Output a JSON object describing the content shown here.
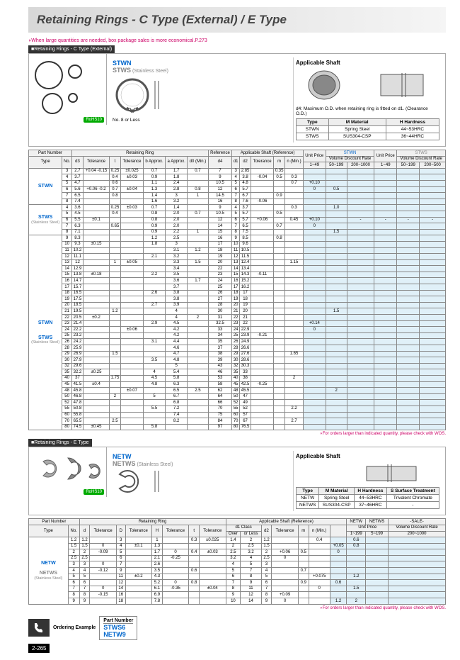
{
  "title": "Retaining Rings - C Type (External) / E Type",
  "topNote": "When large quantities are needed, box package sales is more economical.",
  "topNoteRef": "P.273",
  "section1": {
    "header": "Retaining Rings - C Type (External)",
    "codes": {
      "c1": "STWN",
      "c2": "STWS",
      "c2sub": "(Stainless Steel)"
    },
    "diagNote": "No. 8 or Less",
    "rohs": "RoHS10",
    "shaftTitle": "Applicable Shaft",
    "shaftNote": "d4: Maximum O.D. when retaining ring is fitted on d1. (Clearance O.D.)",
    "matTable": {
      "headers": [
        "Type",
        "M Material",
        "H Hardness"
      ],
      "rows": [
        [
          "STWN",
          "Spring Steel",
          "44~53HRC"
        ],
        [
          "STWS",
          "SUS304-CSP",
          "36~44HRC"
        ]
      ]
    }
  },
  "table1": {
    "groupHeaders": [
      "Part Number",
      "Retaining Ring",
      "Reference",
      "Applicable Shaft (Reference)",
      "",
      "STWN",
      "",
      "STWS"
    ],
    "priceHeaders": [
      "Unit Price",
      "Volume Discount Rate",
      "Unit Price",
      "Volume Discount Rate"
    ],
    "subHeaders": [
      "Type",
      "No.",
      "d3",
      "Tolerance",
      "t",
      "Tolerance",
      "b Approx.",
      "a Approx.",
      "d0 (Min.)",
      "d4",
      "d1",
      "d2",
      "Tolerance",
      "m",
      "n (Min.)",
      "1~49",
      "50~199",
      "200~1000",
      "1~49",
      "50~199",
      "200~500"
    ],
    "types": [
      {
        "name": "STWN",
        "sub": ""
      },
      {
        "name": "STWS",
        "sub": "(Stainless Steel)"
      },
      {
        "name": "STWN",
        "sub": ""
      },
      {
        "name": "STWS",
        "sub": "(Stainless Steel)"
      }
    ],
    "rows": [
      [
        "3",
        "2.7",
        "+0.04 -0.15",
        "0.25",
        "±0.025",
        "0.7",
        "1.7",
        "0.7",
        "7",
        "3",
        "2.85",
        "",
        "0.35",
        "",
        "",
        "",
        "",
        "",
        "",
        ""
      ],
      [
        "4",
        "3.7",
        "",
        "0.4",
        "±0.03",
        "0.9",
        "1.8",
        "",
        "9",
        "4",
        "3.8",
        "-0.04",
        "0.5",
        "0.3",
        "",
        "",
        "",
        "",
        "",
        ""
      ],
      [
        "5",
        "4.7",
        "",
        "0.6",
        "",
        "1.1",
        "2.4",
        "",
        "10.5",
        "5",
        "4.8",
        "",
        "",
        "0.7",
        "+0.10",
        "",
        "",
        "",
        "",
        ""
      ],
      [
        "6",
        "5.6",
        "+0.06 -0.2",
        "0.7",
        "±0.04",
        "1.3",
        "2.8",
        "0.8",
        "12",
        "6",
        "5.7",
        "",
        "",
        "",
        "0",
        "0.5",
        "",
        "",
        "",
        ""
      ],
      [
        "7",
        "6.5",
        "",
        "0.8",
        "",
        "1.4",
        "3",
        "1",
        "14.5",
        "7",
        "6.7",
        "",
        "0.9",
        "",
        "",
        "",
        "",
        "",
        "",
        ""
      ],
      [
        "8",
        "7.4",
        "",
        "",
        "",
        "1.6",
        "3.2",
        "",
        "16",
        "8",
        "7.6",
        "-0.06",
        "",
        "",
        "",
        "",
        "",
        "",
        "",
        ""
      ],
      [
        "4",
        "3.6",
        "",
        "0.25",
        "±0.03",
        "0.7",
        "1.4",
        "",
        "9",
        "4",
        "3.7",
        "",
        "",
        "0.3",
        "",
        "1.0",
        "",
        "",
        "",
        ""
      ],
      [
        "5",
        "4.5",
        "",
        "0.4",
        "",
        "0.8",
        "2.0",
        "0.7",
        "10.5",
        "5",
        "5.7",
        "",
        "0.5",
        "",
        "",
        "",
        "",
        "",
        "",
        ""
      ],
      [
        "6",
        "5.5",
        "±0.1",
        "",
        "",
        "0.8",
        "2.0",
        "",
        "12",
        "6",
        "5.7",
        "+0.06",
        "",
        "0.45",
        "+0.10",
        "",
        "-",
        "-",
        "-",
        "-"
      ],
      [
        "7",
        "6.3",
        "",
        "0.65",
        "",
        "0.9",
        "2.0",
        "",
        "14",
        "7",
        "6.5",
        "",
        "0.7",
        "",
        "0",
        "",
        "",
        "",
        "",
        ""
      ],
      [
        "8",
        "7.1",
        "",
        "",
        "",
        "0.9",
        "2.2",
        "1",
        "15",
        "8",
        "7.5",
        "",
        "",
        "",
        "",
        "1.5",
        "",
        "",
        "",
        ""
      ],
      [
        "9",
        "8.3",
        "",
        "",
        "",
        "1.2",
        "2.5",
        "",
        "16",
        "9",
        "8.5",
        "",
        "0.8",
        "",
        "",
        "",
        "",
        "",
        "",
        ""
      ],
      [
        "10",
        "9.3",
        "±0.15",
        "",
        "",
        "1.8",
        "3",
        "",
        "17",
        "10",
        "9.6",
        "",
        "",
        "",
        "",
        "",
        "",
        "",
        "",
        ""
      ],
      [
        "11",
        "10.2",
        "",
        "",
        "",
        "",
        "3.1",
        "1.2",
        "18",
        "11",
        "10.5",
        "",
        "",
        "",
        "",
        "",
        "",
        "",
        "",
        ""
      ],
      [
        "12",
        "11.1",
        "",
        "",
        "",
        "2.1",
        "3.2",
        "",
        "19",
        "12",
        "11.5",
        "",
        "",
        "",
        "",
        "",
        "",
        "",
        "",
        ""
      ],
      [
        "13",
        "12",
        "",
        "1",
        "±0.05",
        "",
        "3.3",
        "1.5",
        "20",
        "13",
        "12.4",
        "",
        "",
        "1.15",
        "",
        "",
        "",
        "",
        "",
        ""
      ],
      [
        "14",
        "12.9",
        "",
        "",
        "",
        "",
        "3.4",
        "",
        "22",
        "14",
        "13.4",
        "",
        "",
        "",
        "",
        "",
        "",
        "",
        "",
        ""
      ],
      [
        "15",
        "13.8",
        "±0.18",
        "",
        "",
        "2.2",
        "3.5",
        "",
        "23",
        "15",
        "14.3",
        "-0.11",
        "",
        "",
        "",
        "",
        "",
        "",
        "",
        ""
      ],
      [
        "16",
        "14.7",
        "",
        "",
        "",
        "",
        "3.6",
        "1.7",
        "24",
        "16",
        "15.2",
        "",
        "",
        "",
        "",
        "",
        "",
        "",
        "",
        ""
      ],
      [
        "17",
        "15.7",
        "",
        "",
        "",
        "",
        "3.7",
        "",
        "25",
        "17",
        "16.2",
        "",
        "",
        "",
        "",
        "",
        "",
        "",
        "",
        ""
      ],
      [
        "18",
        "16.5",
        "",
        "",
        "",
        "2.6",
        "3.8",
        "",
        "26",
        "18",
        "17",
        "",
        "",
        "",
        "",
        "",
        "",
        "",
        "",
        ""
      ],
      [
        "19",
        "17.5",
        "",
        "",
        "",
        "",
        "3.8",
        "",
        "27",
        "19",
        "18",
        "",
        "",
        "",
        "",
        "",
        "",
        "",
        "",
        ""
      ],
      [
        "20",
        "18.5",
        "",
        "",
        "",
        "2.7",
        "3.9",
        "",
        "28",
        "20",
        "19",
        "",
        "",
        "",
        "",
        "",
        "",
        "",
        "",
        ""
      ],
      [
        "21",
        "19.5",
        "",
        "1.2",
        "",
        "",
        "4",
        "",
        "30",
        "21",
        "20",
        "",
        "",
        "",
        "",
        "1.5",
        "",
        "",
        "",
        ""
      ],
      [
        "22",
        "20.5",
        "±0.2",
        "",
        "",
        "",
        "4",
        "2",
        "31",
        "22",
        "21",
        "",
        "",
        "",
        "",
        "",
        "",
        "",
        "",
        ""
      ],
      [
        "23",
        "21.4",
        "",
        "",
        "",
        "2.9",
        "4.5",
        "",
        "32.5",
        "23",
        "22",
        "",
        "",
        "",
        "+0.14",
        "",
        "",
        "",
        "",
        ""
      ],
      [
        "24",
        "22.2",
        "",
        "",
        "±0.06",
        "",
        "4.2",
        "",
        "33",
        "24",
        "22.9",
        "",
        "",
        "",
        "0",
        "",
        "",
        "",
        "",
        ""
      ],
      [
        "25",
        "23.2",
        "",
        "",
        "",
        "",
        "4.2",
        "",
        "34",
        "25",
        "23.9",
        "-0.21",
        "",
        "",
        "",
        "",
        "",
        "",
        "",
        ""
      ],
      [
        "26",
        "24.2",
        "",
        "",
        "",
        "3.1",
        "4.4",
        "",
        "35",
        "26",
        "24.9",
        "",
        "",
        "",
        "",
        "",
        "",
        "",
        "",
        ""
      ],
      [
        "28",
        "25.9",
        "",
        "",
        "",
        "",
        "4.6",
        "",
        "37",
        "28",
        "26.6",
        "",
        "",
        "",
        "",
        "",
        "",
        "",
        "",
        ""
      ],
      [
        "29",
        "26.9",
        "",
        "1.5",
        "",
        "",
        "4.7",
        "",
        "38",
        "29",
        "27.6",
        "",
        "",
        "1.65",
        "",
        "",
        "",
        "",
        "",
        ""
      ],
      [
        "30",
        "27.9",
        "",
        "",
        "",
        "3.5",
        "4.8",
        "",
        "39",
        "30",
        "28.6",
        "",
        "",
        "",
        "",
        "",
        "",
        "",
        "",
        ""
      ],
      [
        "32",
        "29.6",
        "",
        "",
        "",
        "",
        "5",
        "",
        "43",
        "32",
        "30.3",
        "",
        "",
        "",
        "",
        "",
        "",
        "",
        "",
        ""
      ],
      [
        "35",
        "32.2",
        "±0.25",
        "",
        "",
        "4",
        "5.4",
        "",
        "46",
        "35",
        "33",
        "",
        "",
        "",
        "",
        "",
        "",
        "",
        "",
        ""
      ],
      [
        "40",
        "37",
        "",
        "1.75",
        "",
        "4.5",
        "5.8",
        "",
        "53",
        "40",
        "38",
        "",
        "",
        "2",
        "",
        "",
        "",
        "",
        "",
        ""
      ],
      [
        "45",
        "41.5",
        "±0.4",
        "",
        "",
        "4.8",
        "6.3",
        "",
        "58",
        "45",
        "42.5",
        "-0.25",
        "",
        "",
        "",
        "",
        "",
        "",
        "",
        ""
      ],
      [
        "48",
        "45.8",
        "",
        "",
        "±0.07",
        "",
        "6.5",
        "2.5",
        "62",
        "48",
        "45.5",
        "",
        "",
        "",
        "",
        "2",
        "",
        "",
        "",
        ""
      ],
      [
        "50",
        "46.8",
        "",
        "2",
        "",
        "5",
        "6.7",
        "",
        "64",
        "50",
        "47",
        "",
        "",
        "",
        "",
        "",
        "",
        "",
        "",
        ""
      ],
      [
        "52",
        "47.8",
        "",
        "",
        "",
        "",
        "6.8",
        "",
        "66",
        "52",
        "49",
        "",
        "",
        "",
        "",
        "",
        "",
        "",
        "",
        ""
      ],
      [
        "55",
        "50.8",
        "",
        "",
        "",
        "5.5",
        "7.2",
        "",
        "70",
        "55",
        "52",
        "",
        "",
        "2.2",
        "",
        "",
        "",
        "",
        "",
        ""
      ],
      [
        "60",
        "55.8",
        "",
        "",
        "",
        "",
        "7.4",
        "",
        "75",
        "60",
        "57",
        "",
        "",
        "",
        "",
        "",
        "",
        "",
        "",
        ""
      ],
      [
        "70",
        "65.5",
        "",
        "2.5",
        "",
        "",
        "8.2",
        "",
        "84",
        "70",
        "67",
        "",
        "",
        "2.7",
        "",
        "",
        "",
        "",
        "",
        ""
      ],
      [
        "80",
        "74.5",
        "±0.45",
        "",
        "",
        "5.8",
        "",
        "",
        "97",
        "80",
        "76.5",
        "",
        "",
        "",
        "",
        "",
        "",
        "",
        "",
        ""
      ]
    ]
  },
  "footnote1": "For orders larger than indicated quantity, please check with WOS.",
  "section2": {
    "header": "Retaining Rings - E Type",
    "codes": {
      "c1": "NETW",
      "c2": "NETWS",
      "c2sub": "(Stainless Steel)"
    },
    "rohs": "RoHS10",
    "shaftTitle": "Applicable Shaft",
    "matTable": {
      "headers": [
        "Type",
        "M Material",
        "H Hardness",
        "S Surface Treatment"
      ],
      "rows": [
        [
          "NETW",
          "Spring Steel",
          "44~53HRC",
          "Trivalent Chromate"
        ],
        [
          "NETWS",
          "SUS304-CSP",
          "37~46HRC",
          "-"
        ]
      ]
    }
  },
  "table2": {
    "groupHeaders": [
      "Part Number",
      "Retaining Ring",
      "Applicable Shaft (Reference)",
      "NETW",
      "NETWS",
      "-SALE-"
    ],
    "subHeaders": [
      "Type",
      "No.",
      "d",
      "Tolerance",
      "D",
      "Tolerance",
      "H",
      "Tolerance",
      "t",
      "Tolerance",
      "d1 Class",
      "Over",
      "or Less",
      "d2",
      "Tolerance",
      "m",
      "n (Min.)",
      "Unit Price",
      "",
      "Volume Discount Rate"
    ],
    "qtyHeaders": [
      "1~199",
      "5~199",
      "200~1000"
    ],
    "types": [
      {
        "name": "NETW",
        "sub": ""
      },
      {
        "name": "NETWS",
        "sub": "(Stainless Steel)"
      }
    ],
    "rows": [
      [
        "1.2",
        "1.2",
        "",
        "3",
        "",
        "1",
        "",
        "0.3",
        "±0.025",
        "1.4",
        "2",
        "1.2",
        "",
        "",
        "0.4",
        "",
        "0.6",
        ""
      ],
      [
        "1.5",
        "1.5",
        "0",
        "4",
        "±0.1",
        "1.3",
        "",
        "",
        "",
        "2",
        "2.5",
        "1.5",
        "",
        "",
        "",
        "+0.05",
        "0.8",
        ""
      ],
      [
        "2",
        "2",
        "-0.09",
        "5",
        "",
        "1.7",
        "0",
        "0.4",
        "±0.03",
        "2.5",
        "3.2",
        "2",
        "+0.06",
        "0.5",
        "",
        "0",
        "",
        ""
      ],
      [
        "2.5",
        "2.5",
        "",
        "6",
        "",
        "2.1",
        "-0.25",
        "",
        "",
        "3.2",
        "4",
        "2.5",
        "0",
        "",
        "",
        "",
        "",
        ""
      ],
      [
        "3",
        "3",
        "0",
        "7",
        "",
        "2.6",
        "",
        "",
        "",
        "4",
        "5",
        "3",
        "",
        "",
        "",
        "",
        "",
        ""
      ],
      [
        "4",
        "4",
        "-0.12",
        "9",
        "",
        "3.5",
        "",
        "0.6",
        "",
        "5",
        "7",
        "4",
        "",
        "0.7",
        "",
        "",
        "",
        ""
      ],
      [
        "5",
        "5",
        "",
        "11",
        "±0.2",
        "4.3",
        "",
        "",
        "",
        "6",
        "8",
        "5",
        "",
        "",
        "+0.075",
        "",
        "1.2",
        ""
      ],
      [
        "6",
        "6",
        "",
        "12",
        "",
        "5.2",
        "0",
        "0.8",
        "",
        "7",
        "9",
        "6",
        "",
        "0.9",
        "",
        "0.6",
        "",
        ""
      ],
      [
        "7",
        "7",
        "0",
        "14",
        "",
        "6.1",
        "-0.35",
        "",
        "±0.04",
        "8",
        "11",
        "7",
        "",
        "",
        "0",
        "",
        "1.5",
        ""
      ],
      [
        "8",
        "8",
        "-0.15",
        "16",
        "",
        "6.9",
        "",
        "",
        "",
        "9",
        "12",
        "8",
        "+0.09",
        "",
        "",
        "",
        "",
        ""
      ],
      [
        "9",
        "9",
        "",
        "18",
        "",
        "7.8",
        "",
        "",
        "",
        "10",
        "14",
        "9",
        "0",
        "",
        "",
        "1.2",
        "2",
        ""
      ]
    ]
  },
  "footnote2": "For orders larger than indicated quantity, please check with WOS.",
  "ordering": {
    "label": "Ordering Example",
    "header": "Part Number",
    "ex1": "STWS6",
    "ex2": "NETW9"
  },
  "pageNum": "2-265"
}
